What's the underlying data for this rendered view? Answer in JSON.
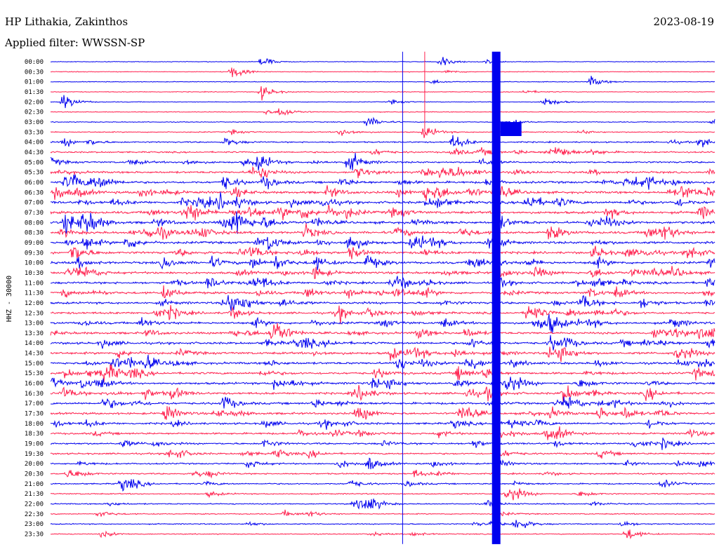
{
  "header": {
    "station": "HP Lithakia, Zakinthos",
    "date": "2023-08-19",
    "filter": "Applied filter: WWSSN-SP"
  },
  "chart_data": {
    "type": "line",
    "title": "HP Lithakia, Zakinthos",
    "subtitle": "Applied filter: WWSSN-SP",
    "date": "2023-08-19",
    "ylabel": "HHZ - 30000",
    "row_labels": [
      "00:00",
      "00:30",
      "01:00",
      "01:30",
      "02:00",
      "02:30",
      "03:00",
      "03:30",
      "04:00",
      "04:30",
      "05:00",
      "05:30",
      "06:00",
      "06:30",
      "07:00",
      "07:30",
      "08:00",
      "08:30",
      "09:00",
      "09:30",
      "10:00",
      "10:30",
      "11:00",
      "11:30",
      "12:00",
      "12:30",
      "13:00",
      "13:30",
      "14:00",
      "14:30",
      "15:00",
      "15:30",
      "16:00",
      "16:30",
      "17:00",
      "17:30",
      "18:00",
      "18:30",
      "19:00",
      "19:30",
      "20:00",
      "20:30",
      "21:00",
      "21:30",
      "22:00",
      "22:30",
      "23:00",
      "23:30"
    ],
    "series_colors": [
      "#0000ee",
      "#ff1f4d"
    ],
    "row_activity": [
      0.08,
      0.1,
      0.1,
      0.1,
      0.11,
      0.12,
      0.16,
      0.26,
      0.42,
      0.52,
      0.58,
      0.72,
      0.82,
      0.88,
      0.95,
      0.95,
      0.95,
      0.92,
      0.9,
      0.88,
      0.86,
      0.86,
      0.82,
      0.82,
      0.8,
      0.8,
      0.82,
      0.82,
      0.86,
      0.86,
      0.82,
      0.82,
      0.82,
      0.8,
      0.78,
      0.76,
      0.7,
      0.66,
      0.62,
      0.56,
      0.5,
      0.45,
      0.4,
      0.36,
      0.32,
      0.28,
      0.26,
      0.24
    ],
    "events_minutes": [
      {
        "row": 0,
        "minute": 9.5,
        "amp": 0.9
      },
      {
        "row": 0,
        "minute": 17.6,
        "amp": 1.0
      },
      {
        "row": 1,
        "minute": 8.2,
        "amp": 1.4
      },
      {
        "row": 2,
        "minute": 24.4,
        "amp": 0.9
      },
      {
        "row": 3,
        "minute": 9.5,
        "amp": 1.3
      },
      {
        "row": 4,
        "minute": 0.6,
        "amp": 1.4
      },
      {
        "row": 4,
        "minute": 22.3,
        "amp": 1.0
      },
      {
        "row": 5,
        "minute": 10.4,
        "amp": 1.0
      },
      {
        "row": 6,
        "minute": 14.3,
        "amp": 1.1
      },
      {
        "row": 7,
        "minute": 16.9,
        "amp": 1.2
      },
      {
        "row": 8,
        "minute": 18.2,
        "amp": 1.4
      },
      {
        "row": 10,
        "minute": 13.6,
        "amp": 1.3
      },
      {
        "row": 12,
        "minute": 7.8,
        "amp": 1.5
      },
      {
        "row": 13,
        "minute": 0.2,
        "amp": 1.6
      },
      {
        "row": 13,
        "minute": 16.9,
        "amp": 1.5
      },
      {
        "row": 16,
        "minute": 8.2,
        "amp": 1.6
      },
      {
        "row": 20,
        "minute": 14.3,
        "amp": 1.5
      },
      {
        "row": 27,
        "minute": 10.0,
        "amp": 1.6
      },
      {
        "row": 30,
        "minute": 15.6,
        "amp": 1.4
      },
      {
        "row": 34,
        "minute": 7.8,
        "amp": 1.5
      },
      {
        "row": 35,
        "minute": 5.2,
        "amp": 1.6
      },
      {
        "row": 40,
        "minute": 14.3,
        "amp": 1.5
      },
      {
        "row": 42,
        "minute": 3.2,
        "amp": 1.4
      },
      {
        "row": 44,
        "minute": 14.3,
        "amp": 1.4
      },
      {
        "row": 46,
        "minute": 21.0,
        "amp": 1.5
      },
      {
        "row": 47,
        "minute": 26.0,
        "amp": 1.2
      }
    ],
    "long_spikes": [
      {
        "minute": 15.9,
        "from_row": -1,
        "to_row": 48,
        "color": "#0000ee"
      },
      {
        "minute": 16.9,
        "from_row": -1,
        "to_row": 7,
        "color": "#ff1f4d"
      }
    ],
    "big_event": {
      "minute": 20.0,
      "from_row": -1,
      "to_row": 48,
      "color": "#0000ee"
    },
    "grid": false
  }
}
